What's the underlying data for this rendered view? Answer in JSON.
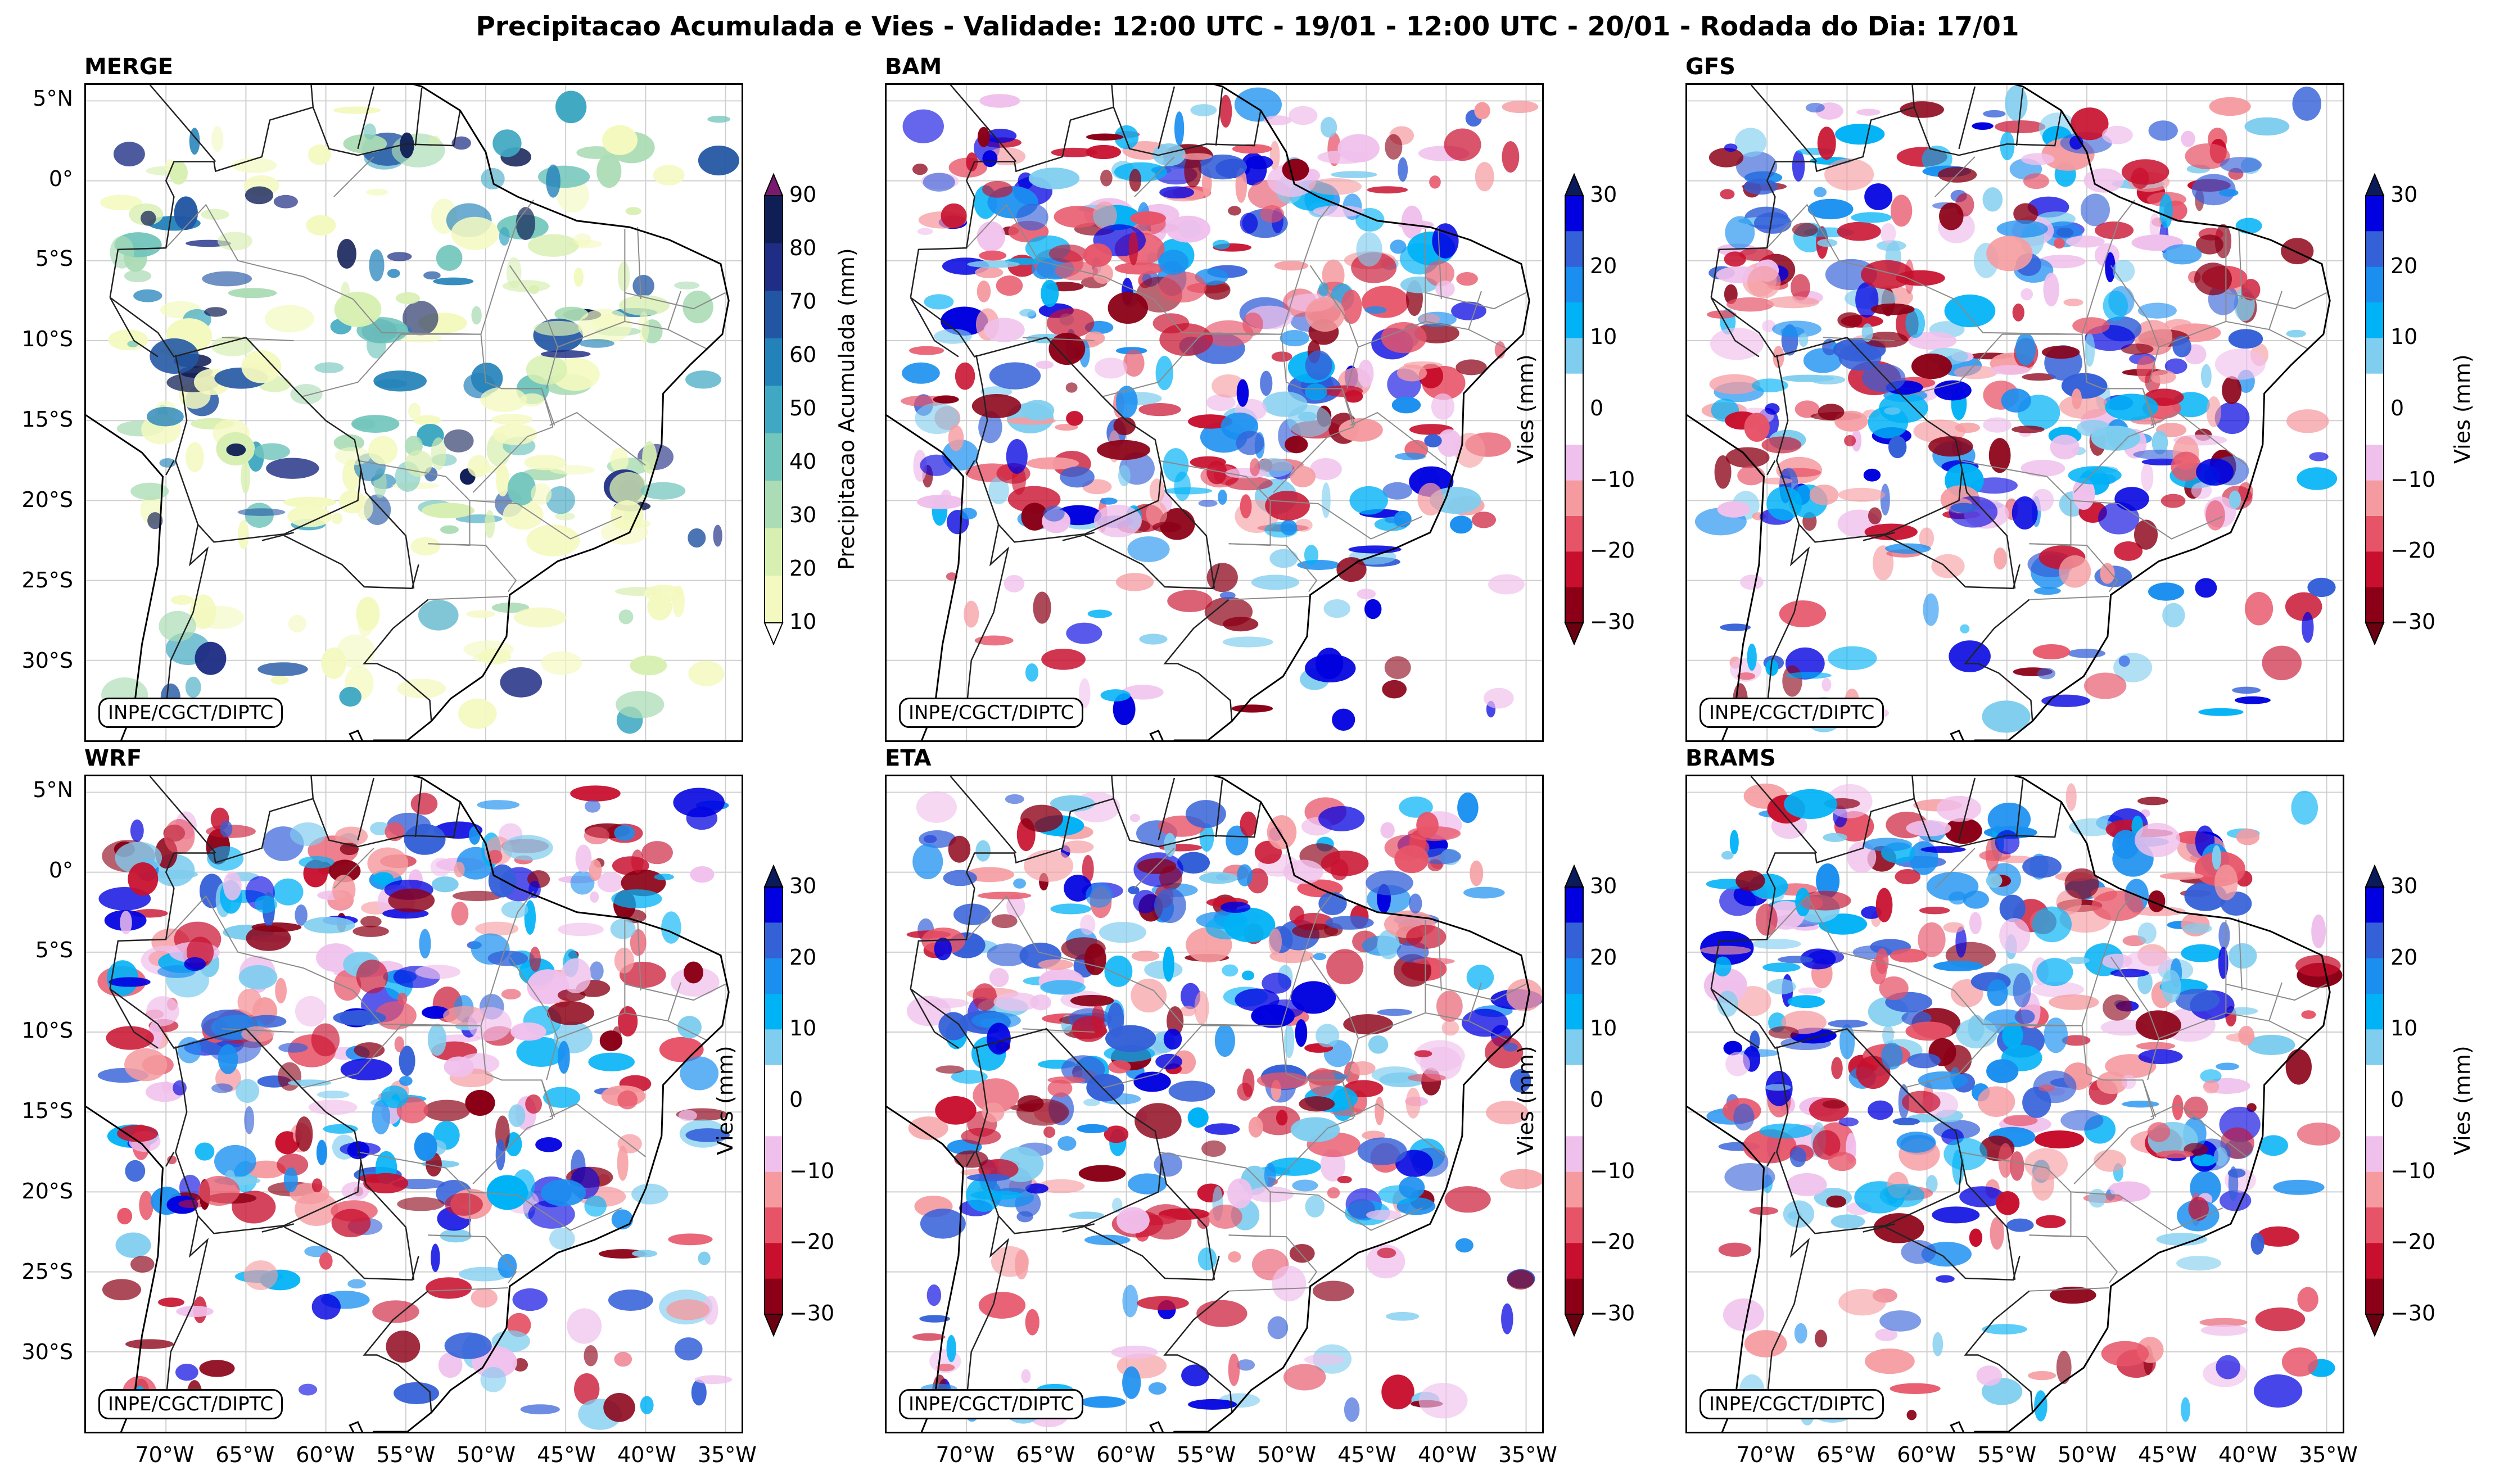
{
  "title": "Precipitacao Acumulada e Vies - Validade: 12:00 UTC - 19/01 - 12:00 UTC - 20/01 - Rodada do Dia: 17/01",
  "credit": "INPE/CGCT/DIPTC",
  "lat_ticks": [
    "5°N",
    "0°",
    "5°S",
    "10°S",
    "15°S",
    "20°S",
    "25°S",
    "30°S"
  ],
  "lon_ticks": [
    "70°W",
    "65°W",
    "60°W",
    "55°W",
    "50°W",
    "45°W",
    "40°W",
    "35°W"
  ],
  "panels": [
    {
      "name": "MERGE",
      "kind": "precip"
    },
    {
      "name": "BAM",
      "kind": "bias"
    },
    {
      "name": "GFS",
      "kind": "bias"
    },
    {
      "name": "WRF",
      "kind": "bias"
    },
    {
      "name": "ETA",
      "kind": "bias"
    },
    {
      "name": "BRAMS",
      "kind": "bias"
    }
  ],
  "precip_colorbar": {
    "label": "Precipitacao Acumulada (mm)",
    "ticks": [
      "10",
      "20",
      "30",
      "40",
      "50",
      "60",
      "70",
      "80",
      "90"
    ],
    "colors": [
      "#f4f9bf",
      "#d8efb2",
      "#abdcb5",
      "#72c6bc",
      "#40a8c2",
      "#2382b9",
      "#2256a3",
      "#1f2e84",
      "#0f1e55"
    ],
    "extend_color": "#7a1a6e"
  },
  "bias_colorbar": {
    "label": "Vies (mm)",
    "ticks": [
      "30",
      "20",
      "10",
      "0",
      "−10",
      "−20",
      "−30"
    ],
    "colors": [
      "#0000e0",
      "#3460d8",
      "#1a8ff0",
      "#00b2f6",
      "#7fcdef",
      "#ffffff",
      "#ffffff",
      "#f0c0ec",
      "#f59ba0",
      "#e75468",
      "#c8102e",
      "#8b0016"
    ],
    "top_extend": "#0a1a5a",
    "bottom_extend": "#6a0010"
  }
}
